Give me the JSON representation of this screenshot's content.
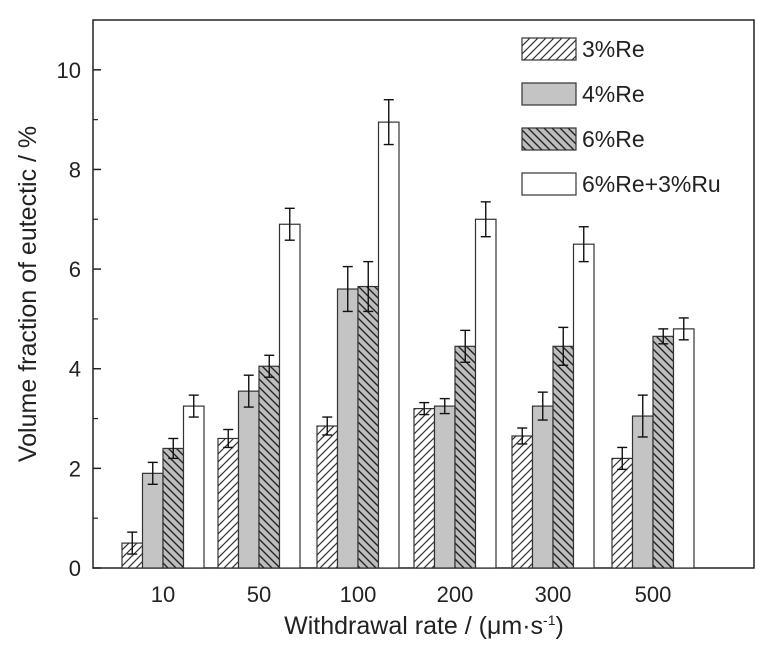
{
  "chart_data": {
    "type": "bar",
    "xlabel": "Withdrawal rate / (μm·s",
    "xlabel_sup": "-1",
    "xlabel_suffix": ")",
    "ylabel": "Volume fraction of eutectic / %",
    "ylim": [
      0,
      11
    ],
    "yticks": [
      0,
      2,
      4,
      6,
      8,
      10
    ],
    "categories": [
      "10",
      "50",
      "100",
      "200",
      "300",
      "500"
    ],
    "legend_position": "top-right",
    "series": [
      {
        "name": "3%Re",
        "pattern": "hatch-forward",
        "values": [
          0.5,
          2.6,
          2.85,
          3.2,
          2.65,
          2.2
        ],
        "errors": [
          0.22,
          0.18,
          0.18,
          0.12,
          0.16,
          0.22
        ]
      },
      {
        "name": "4%Re",
        "pattern": "solid-gray",
        "values": [
          1.9,
          3.55,
          5.6,
          3.25,
          3.25,
          3.05
        ],
        "errors": [
          0.22,
          0.32,
          0.45,
          0.15,
          0.28,
          0.42
        ]
      },
      {
        "name": "6%Re",
        "pattern": "hatch-backward",
        "values": [
          2.4,
          4.05,
          5.65,
          4.45,
          4.45,
          4.65
        ],
        "errors": [
          0.2,
          0.22,
          0.5,
          0.32,
          0.38,
          0.15
        ]
      },
      {
        "name": "6%Re+3%Ru",
        "pattern": "white",
        "values": [
          3.25,
          6.9,
          8.95,
          7.0,
          6.5,
          4.8
        ],
        "errors": [
          0.22,
          0.32,
          0.45,
          0.35,
          0.35,
          0.22
        ]
      }
    ]
  }
}
